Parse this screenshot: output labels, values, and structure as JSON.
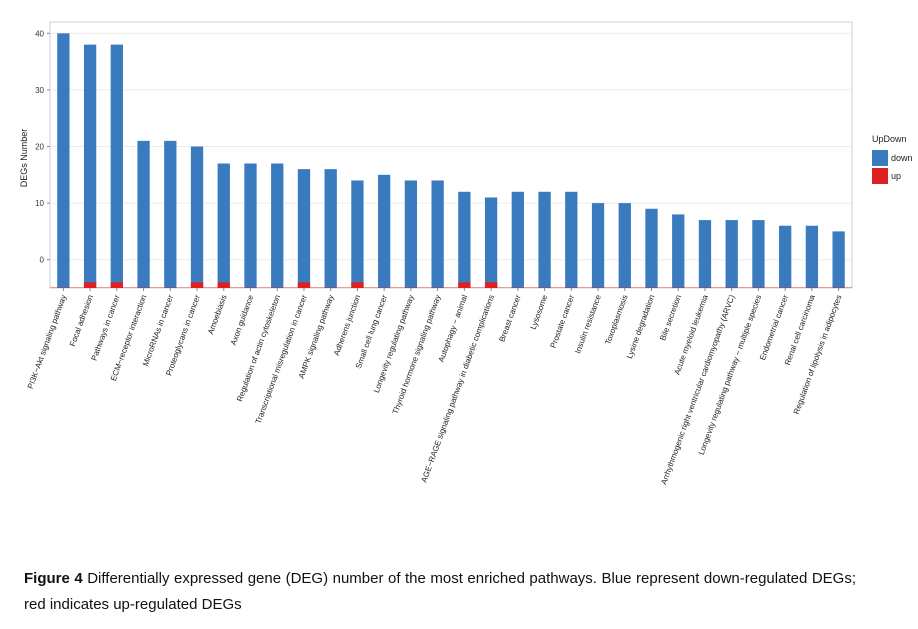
{
  "chart_data": {
    "type": "bar",
    "ylabel": "DEGs Number",
    "xlabel": "",
    "ylim": [
      -5,
      42
    ],
    "yticks": [
      0,
      10,
      20,
      30,
      40
    ],
    "grid": true,
    "legend_position": "right",
    "legend_title": "UpDown",
    "categories": [
      "PI3K−Akt signaling pathway",
      "Focal adhesion",
      "Pathways in cancer",
      "ECM−receptor interaction",
      "MicroRNAs in cancer",
      "Proteoglycans in cancer",
      "Amoebiasis",
      "Axon guidance",
      "Regulation of actin cytoskeleton",
      "Transcriptional misregulation in cancer",
      "AMPK signaling pathway",
      "Adherens junction",
      "Small cell lung cancer",
      "Longevity regulating pathway",
      "Thyroid hormone signaling pathway",
      "Autophagy − animal",
      "AGE−RAGE signaling pathway in diabetic complications",
      "Breast cancer",
      "Lysosome",
      "Prostate cancer",
      "Insulin resistance",
      "Toxoplasmosis",
      "Lysine degradation",
      "Bile secretion",
      "Acute myeloid leukemia",
      "Arrhythmogenic right ventricular cardiomyopathy (ARVC)",
      "Longevity regulating pathway − multiple species",
      "Endometrial cancer",
      "Renal cell carcinoma",
      "Regulation of lipolysis in adipocytes"
    ],
    "series": [
      {
        "name": "down",
        "color": "#3a7bbf",
        "values": [
          40,
          38,
          38,
          21,
          21,
          20,
          17,
          17,
          17,
          16,
          16,
          14,
          15,
          14,
          14,
          12,
          11,
          12,
          12,
          12,
          10,
          10,
          9,
          8,
          7,
          7,
          7,
          6,
          6,
          5
        ]
      },
      {
        "name": "up",
        "color": "#e02020",
        "values": [
          0,
          1,
          1,
          0,
          0,
          1,
          1,
          0,
          0,
          1,
          0,
          1,
          0,
          0,
          0,
          1,
          1,
          0,
          0,
          0,
          0,
          0,
          0,
          0,
          0,
          0,
          0,
          0,
          0,
          0
        ]
      }
    ]
  },
  "caption": {
    "label": "Figure 4",
    "text": " Differentially expressed gene (DEG) number of the most enriched pathways. Blue represent down-regulated DEGs; red indicates up-regulated DEGs"
  }
}
